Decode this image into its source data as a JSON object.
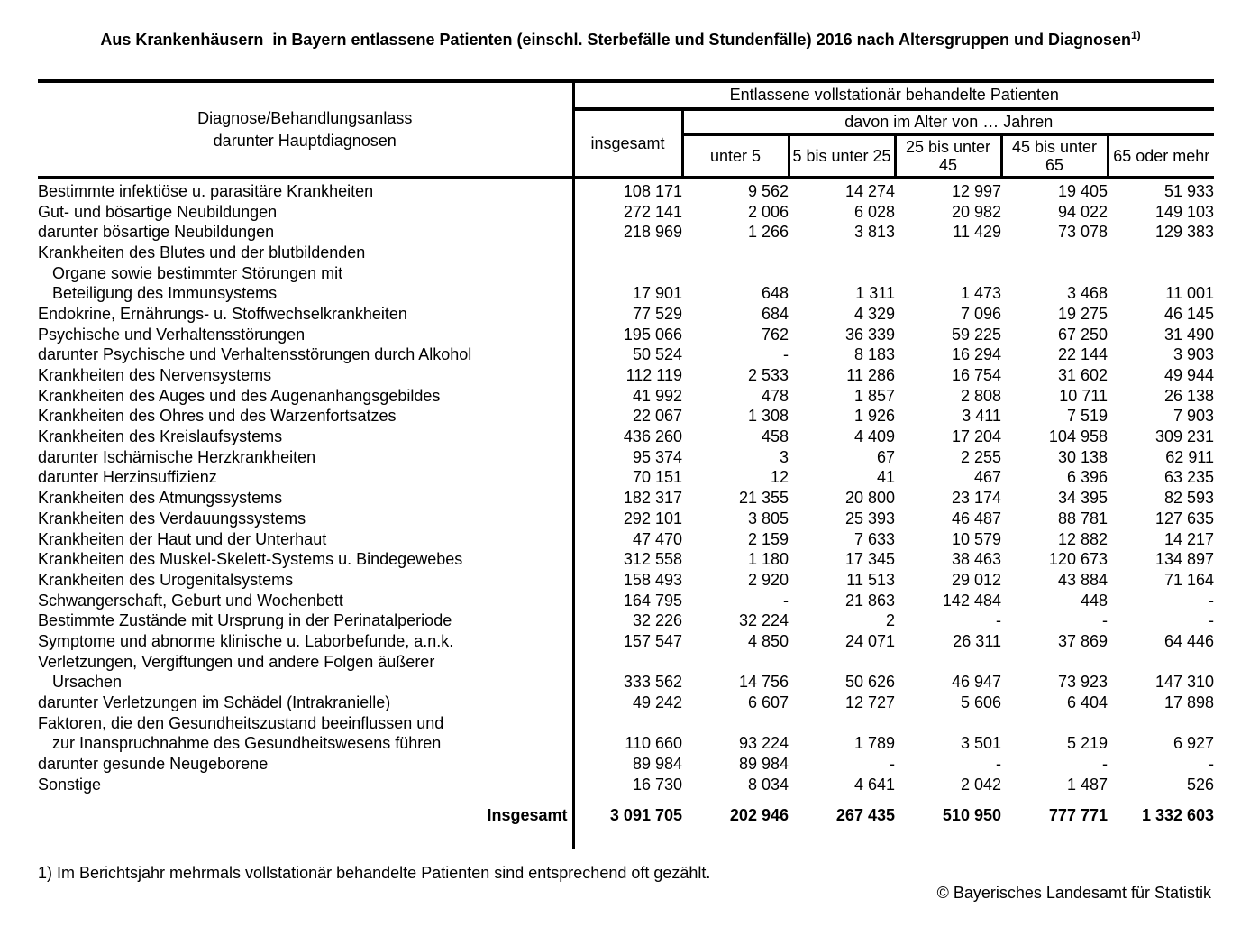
{
  "title": {
    "text": "Aus Krankenhäusern  in Bayern entlassene Patienten (einschl. Sterbefälle und Stundenfälle) 2016 nach Altersgruppen und Diagnosen",
    "footnote_ref": "1)"
  },
  "table": {
    "col1_header_line1": "Diagnose/Behandlungsanlass",
    "col1_header_line2": "darunter Hauptdiagnosen",
    "group_header": "Entlassene vollstationär behandelte Patienten",
    "insgesamt_header": "insgesamt",
    "age_group_header": "davon im Alter von … Jahren",
    "age_columns": [
      "unter 5",
      "5 bis unter 25",
      "25 bis unter 45",
      "45 bis unter 65",
      "65 oder mehr"
    ],
    "rows": [
      {
        "label": "Bestimmte infektiöse u. parasitäre Krankheiten",
        "indent": false,
        "values": [
          "108 171",
          "9 562",
          "14 274",
          "12 997",
          "19 405",
          "51 933"
        ]
      },
      {
        "label": "Gut- und bösartige Neubildungen",
        "indent": false,
        "values": [
          "272 141",
          "2 006",
          "6 028",
          "20 982",
          "94 022",
          "149 103"
        ]
      },
      {
        "label": "darunter bösartige Neubildungen",
        "indent": false,
        "values": [
          "218 969",
          "1 266",
          "3 813",
          "11 429",
          "73 078",
          "129 383"
        ]
      },
      {
        "label": "Krankheiten des Blutes und der blutbildenden",
        "indent": false,
        "values": null
      },
      {
        "label": "Organe sowie bestimmter Störungen mit",
        "indent": true,
        "values": null
      },
      {
        "label": "Beteiligung des Immunsystems",
        "indent": true,
        "values": [
          "17 901",
          "648",
          "1 311",
          "1 473",
          "3 468",
          "11 001"
        ]
      },
      {
        "label": "Endokrine, Ernährungs- u. Stoffwechselkrankheiten",
        "indent": false,
        "values": [
          "77 529",
          "684",
          "4 329",
          "7 096",
          "19 275",
          "46 145"
        ]
      },
      {
        "label": "Psychische und Verhaltensstörungen",
        "indent": false,
        "values": [
          "195 066",
          "762",
          "36 339",
          "59 225",
          "67 250",
          "31 490"
        ]
      },
      {
        "label": "darunter Psychische und Verhaltensstörungen durch Alkohol",
        "indent": false,
        "values": [
          "50 524",
          "-",
          "8 183",
          "16 294",
          "22 144",
          "3 903"
        ]
      },
      {
        "label": "Krankheiten des Nervensystems",
        "indent": false,
        "values": [
          "112 119",
          "2 533",
          "11 286",
          "16 754",
          "31 602",
          "49 944"
        ]
      },
      {
        "label": "Krankheiten des Auges und des Augenanhangsgebildes",
        "indent": false,
        "values": [
          "41 992",
          "478",
          "1 857",
          "2 808",
          "10 711",
          "26 138"
        ]
      },
      {
        "label": "Krankheiten des Ohres und des Warzenfortsatzes",
        "indent": false,
        "values": [
          "22 067",
          "1 308",
          "1 926",
          "3 411",
          "7 519",
          "7 903"
        ]
      },
      {
        "label": "Krankheiten des Kreislaufsystems",
        "indent": false,
        "values": [
          "436 260",
          "458",
          "4 409",
          "17 204",
          "104 958",
          "309 231"
        ]
      },
      {
        "label": "darunter Ischämische Herzkrankheiten",
        "indent": false,
        "values": [
          "95 374",
          "3",
          "67",
          "2 255",
          "30 138",
          "62 911"
        ]
      },
      {
        "label": "darunter Herzinsuffizienz",
        "indent": false,
        "values": [
          "70 151",
          "12",
          "41",
          "467",
          "6 396",
          "63 235"
        ]
      },
      {
        "label": "Krankheiten des Atmungssystems",
        "indent": false,
        "values": [
          "182 317",
          "21 355",
          "20 800",
          "23 174",
          "34 395",
          "82 593"
        ]
      },
      {
        "label": "Krankheiten des Verdauungssystems",
        "indent": false,
        "values": [
          "292 101",
          "3 805",
          "25 393",
          "46 487",
          "88 781",
          "127 635"
        ]
      },
      {
        "label": "Krankheiten der Haut und der Unterhaut",
        "indent": false,
        "values": [
          "47 470",
          "2 159",
          "7 633",
          "10 579",
          "12 882",
          "14 217"
        ]
      },
      {
        "label": "Krankheiten des Muskel-Skelett-Systems u. Bindegewebes",
        "indent": false,
        "values": [
          "312 558",
          "1 180",
          "17 345",
          "38 463",
          "120 673",
          "134 897"
        ]
      },
      {
        "label": "Krankheiten des Urogenitalsystems",
        "indent": false,
        "values": [
          "158 493",
          "2 920",
          "11 513",
          "29 012",
          "43 884",
          "71 164"
        ]
      },
      {
        "label": "Schwangerschaft, Geburt und Wochenbett",
        "indent": false,
        "values": [
          "164 795",
          "-",
          "21 863",
          "142 484",
          "448",
          "-"
        ]
      },
      {
        "label": "Bestimmte Zustände mit Ursprung in der Perinatalperiode",
        "indent": false,
        "values": [
          "32 226",
          "32 224",
          "2",
          "-",
          "-",
          "-"
        ]
      },
      {
        "label": "Symptome und abnorme klinische u. Laborbefunde, a.n.k.",
        "indent": false,
        "values": [
          "157 547",
          "4 850",
          "24 071",
          "26 311",
          "37 869",
          "64 446"
        ]
      },
      {
        "label": "Verletzungen, Vergiftungen und andere Folgen äußerer",
        "indent": false,
        "values": null
      },
      {
        "label": "Ursachen",
        "indent": true,
        "values": [
          "333 562",
          "14 756",
          "50 626",
          "46 947",
          "73 923",
          "147 310"
        ]
      },
      {
        "label": "darunter Verletzungen im Schädel (Intrakranielle)",
        "indent": false,
        "values": [
          "49 242",
          "6 607",
          "12 727",
          "5 606",
          "6 404",
          "17 898"
        ]
      },
      {
        "label": "Faktoren, die den Gesundheitszustand beeinflussen und",
        "indent": false,
        "values": null
      },
      {
        "label": "zur Inanspruchnahme des Gesundheitswesens führen",
        "indent": true,
        "values": [
          "110 660",
          "93 224",
          "1 789",
          "3 501",
          "5 219",
          "6 927"
        ]
      },
      {
        "label": "darunter gesunde Neugeborene",
        "indent": false,
        "values": [
          "89 984",
          "89 984",
          "-",
          "-",
          "-",
          "-"
        ]
      },
      {
        "label": "Sonstige",
        "indent": false,
        "values": [
          "16 730",
          "8 034",
          "4 641",
          "2 042",
          "1 487",
          "526"
        ]
      }
    ],
    "total_row": {
      "label": "Insgesamt",
      "values": [
        "3 091 705",
        "202 946",
        "267 435",
        "510 950",
        "777 771",
        "1 332 603"
      ]
    }
  },
  "footer": {
    "footnote": "1) Im Berichtsjahr mehrmals vollstationär behandelte Patienten sind entsprechend oft gezählt.",
    "copyright": "© Bayerisches Landesamt für Statistik"
  }
}
